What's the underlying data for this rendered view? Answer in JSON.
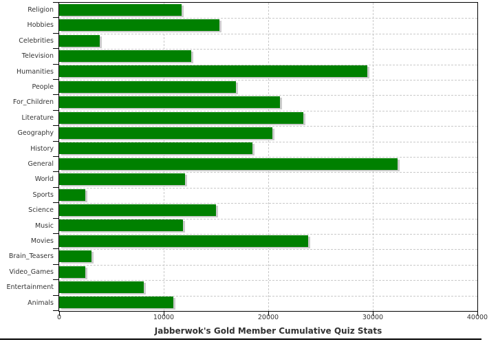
{
  "chart_data": {
    "type": "bar",
    "orientation": "horizontal",
    "title": "Jabberwok's Gold Member Cumulative Quiz Stats",
    "title_position": "bottom",
    "categories": [
      "Religion",
      "Hobbies",
      "Celebrities",
      "Television",
      "Humanities",
      "People",
      "For_Children",
      "Literature",
      "Geography",
      "History",
      "General",
      "World",
      "Sports",
      "Science",
      "Music",
      "Movies",
      "Brain_Teasers",
      "Video_Games",
      "Entertainment",
      "Animals"
    ],
    "values": [
      11700,
      15300,
      3850,
      12650,
      29500,
      16900,
      21100,
      23350,
      20400,
      18500,
      32400,
      12050,
      2500,
      15000,
      11850,
      23800,
      3100,
      2500,
      8100,
      10950
    ],
    "xlim": [
      0,
      40000
    ],
    "x_ticks": [
      0,
      10000,
      20000,
      30000,
      40000
    ],
    "x_tick_labels": [
      "0",
      "10000",
      "20000",
      "30000",
      "40000"
    ],
    "grid": "dashed",
    "legend": "none",
    "colors": {
      "bar": "#008000",
      "bar_shadow": "#cccccc",
      "gridline": "#c8c8c8",
      "axis": "#000000",
      "text": "#333333",
      "background": "#ffffff"
    }
  }
}
